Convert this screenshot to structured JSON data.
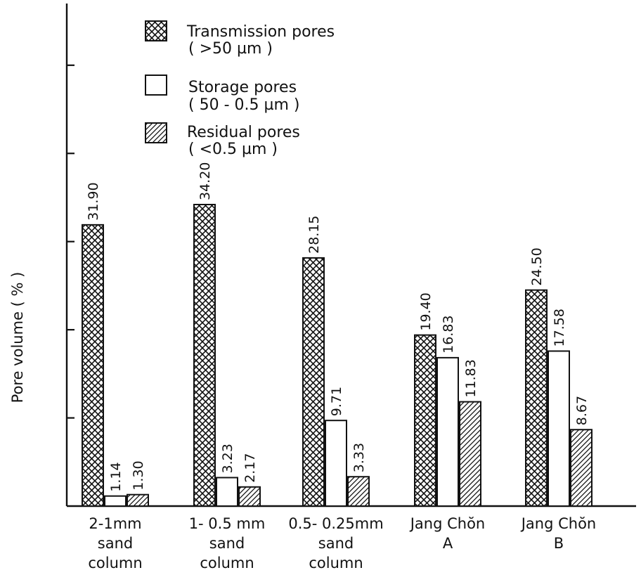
{
  "chart_data": {
    "type": "bar",
    "ylabel": "Pore volume ( % )",
    "xlabel": "",
    "ylim": [
      0,
      57
    ],
    "ytick_step": 10,
    "categories": [
      [
        "2-1mm",
        "sand",
        "column"
      ],
      [
        "1- 0.5 mm",
        "sand",
        "column"
      ],
      [
        "0.5- 0.25mm",
        "sand",
        "column"
      ],
      [
        "Jang Chŏn",
        "A"
      ],
      [
        "Jang Chŏn",
        "B"
      ]
    ],
    "series": [
      {
        "name": "Transmission pores",
        "name_detail": "( >50 µm )",
        "pattern": "crosshatch",
        "values": [
          31.9,
          34.2,
          28.15,
          19.4,
          24.5
        ],
        "value_labels": [
          "31.90",
          "34.20",
          "28.15",
          "19.40",
          "24.50"
        ]
      },
      {
        "name": "Storage pores",
        "name_detail": "( 50 - 0.5 µm )",
        "pattern": "empty",
        "values": [
          1.14,
          3.23,
          9.71,
          16.83,
          17.58
        ],
        "value_labels": [
          "1.14",
          "3.23",
          "9.71",
          "16.83",
          "17.58"
        ]
      },
      {
        "name": "Residual pores",
        "name_detail": "( <0.5 µm )",
        "pattern": "diagonal",
        "values": [
          1.3,
          2.17,
          3.33,
          11.83,
          8.67
        ],
        "value_labels": [
          "1.30",
          "2.17",
          "3.33",
          "11.83",
          "8.67"
        ]
      }
    ],
    "colors": {
      "ink": "#111111",
      "background": "#ffffff"
    }
  }
}
